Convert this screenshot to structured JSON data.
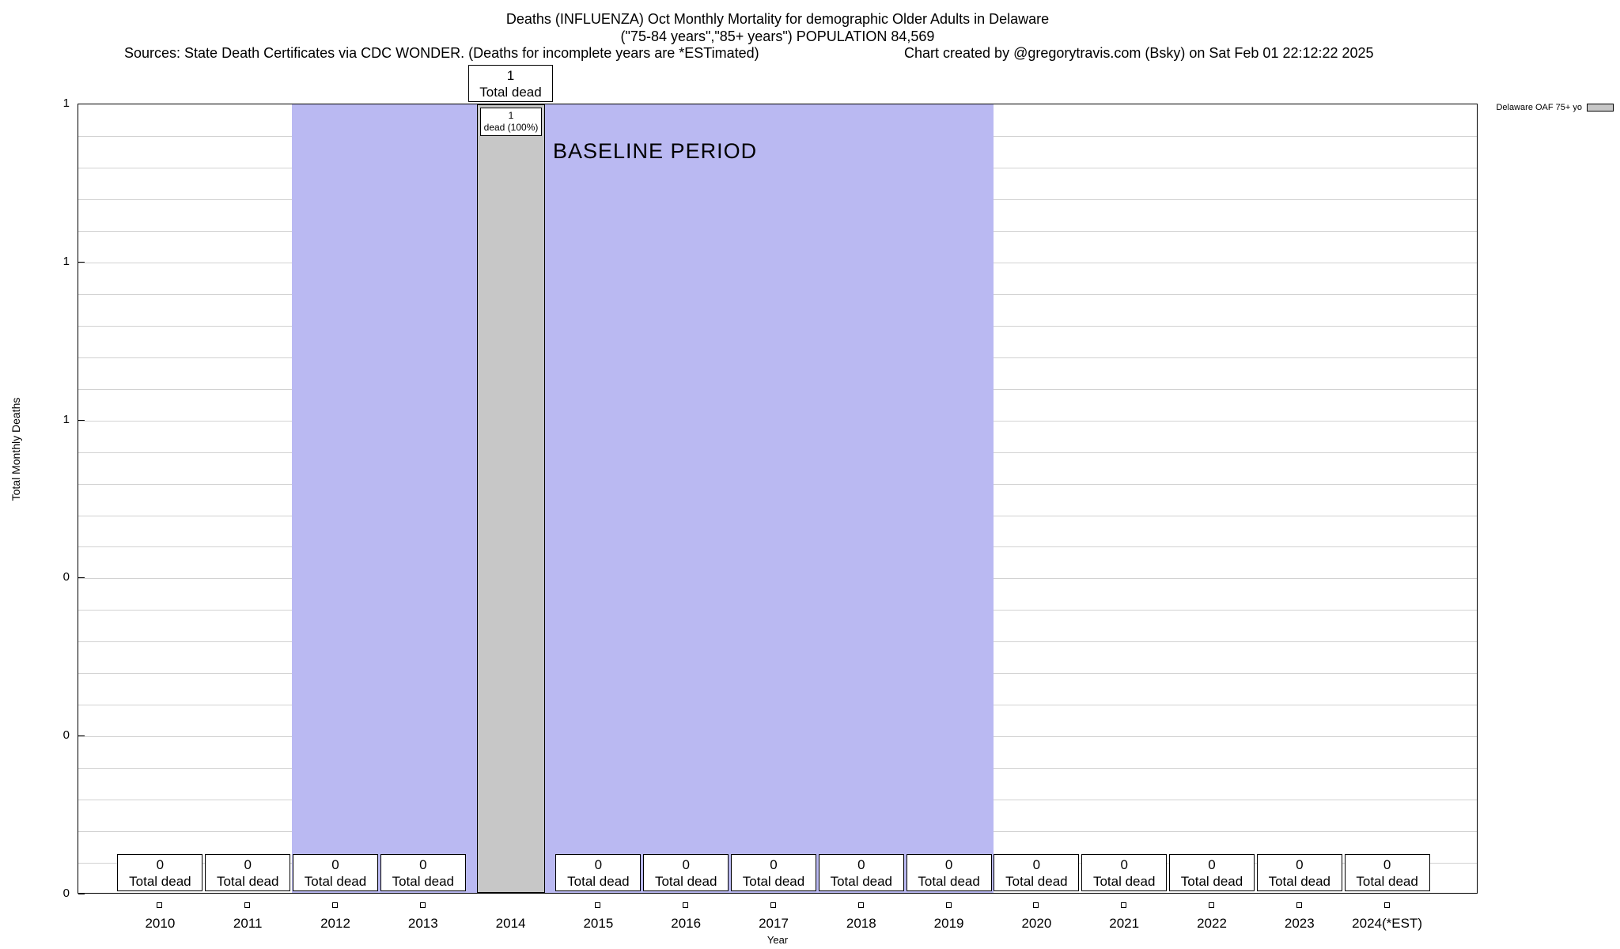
{
  "header": {
    "title": "Deaths (INFLUENZA) Oct Monthly Mortality for demographic Older Adults in Delaware",
    "subtitle": "(\"75-84 years\",\"85+ years\") POPULATION 84,569",
    "sources": "Sources: State Death Certificates via CDC WONDER. (Deaths for incomplete years are *ESTimated)",
    "credit": "Chart created by @gregorytravis.com (Bsky) on Sat Feb 01 22:12:22 2025"
  },
  "chart_data": {
    "type": "bar",
    "title": "Deaths (INFLUENZA) Oct Monthly Mortality for demographic Older Adults in Delaware",
    "subtitle": "(\"75-84 years\",\"85+ years\") POPULATION 84,569",
    "xlabel": "Year",
    "ylabel": "Total Monthly Deaths",
    "categories": [
      "2010",
      "2011",
      "2012",
      "2013",
      "2014",
      "2015",
      "2016",
      "2017",
      "2018",
      "2019",
      "2020",
      "2021",
      "2022",
      "2023",
      "2024(*EST)"
    ],
    "series": [
      {
        "name": "Delaware OAF 75+ yo",
        "values": [
          0,
          0,
          0,
          0,
          1,
          0,
          0,
          0,
          0,
          0,
          0,
          0,
          0,
          0,
          0
        ]
      }
    ],
    "ylim": [
      0,
      1
    ],
    "ytick_values": [
      0,
      0.2,
      0.4,
      0.6,
      0.8,
      1
    ],
    "ytick_labels": [
      "0",
      "0",
      "0",
      "1",
      "1",
      "1"
    ],
    "grid": true,
    "legend_position": "top-right-outside",
    "bar_color": "#c7c7c7",
    "baseline_band_color": "#bab9f2",
    "baseline_period": {
      "label": "BASELINE PERIOD",
      "start_category": "2012",
      "end_category": "2019"
    },
    "bar_annotations": [
      {
        "year": "2010",
        "value": "0",
        "label": "Total dead"
      },
      {
        "year": "2011",
        "value": "0",
        "label": "Total dead"
      },
      {
        "year": "2012",
        "value": "0",
        "label": "Total dead"
      },
      {
        "year": "2013",
        "value": "0",
        "label": "Total dead"
      },
      {
        "year": "2014",
        "value": "1",
        "label": "Total dead"
      },
      {
        "year": "2015",
        "value": "0",
        "label": "Total dead"
      },
      {
        "year": "2016",
        "value": "0",
        "label": "Total dead"
      },
      {
        "year": "2017",
        "value": "0",
        "label": "Total dead"
      },
      {
        "year": "2018",
        "value": "0",
        "label": "Total dead"
      },
      {
        "year": "2019",
        "value": "0",
        "label": "Total dead"
      },
      {
        "year": "2020",
        "value": "0",
        "label": "Total dead"
      },
      {
        "year": "2021",
        "value": "0",
        "label": "Total dead"
      },
      {
        "year": "2022",
        "value": "0",
        "label": "Total dead"
      },
      {
        "year": "2023",
        "value": "0",
        "label": "Total dead"
      },
      {
        "year": "2024(*EST)",
        "value": "0",
        "label": "Total dead"
      }
    ],
    "annotations": {
      "total_2014": {
        "value": "1",
        "label": "Total dead"
      },
      "detail_2014": {
        "line1": "1",
        "line2": "dead (100%)"
      }
    }
  }
}
